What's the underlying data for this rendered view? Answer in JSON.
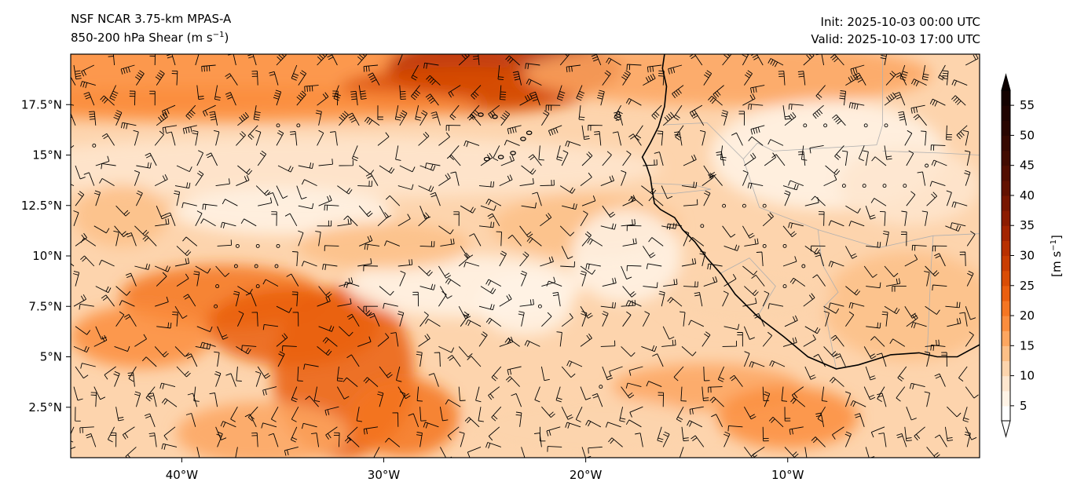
{
  "header": {
    "model": "NSF NCAR 3.75-km MPAS-A",
    "field_label": "850-200 hPa Shear (m s",
    "field_exp": "−1",
    "field_close": ")",
    "init": "Init: 2025-10-03 00:00 UTC",
    "valid": "Valid: 2025-10-03 17:00 UTC"
  },
  "map": {
    "lon_ticks": [
      {
        "lon": -40,
        "label": "40°W"
      },
      {
        "lon": -30,
        "label": "30°W"
      },
      {
        "lon": -20,
        "label": "20°W"
      },
      {
        "lon": -10,
        "label": "10°W"
      }
    ],
    "lat_ticks": [
      {
        "lat": 2.5,
        "label": "2.5°N"
      },
      {
        "lat": 5,
        "label": "5°N"
      },
      {
        "lat": 7.5,
        "label": "7.5°N"
      },
      {
        "lat": 10,
        "label": "10°N"
      },
      {
        "lat": 12.5,
        "label": "12.5°N"
      },
      {
        "lat": 15,
        "label": "15°N"
      },
      {
        "lat": 17.5,
        "label": "17.5°N"
      }
    ],
    "extent": {
      "lon_min": -45.5,
      "lon_max": -0.5,
      "lat_min": 0,
      "lat_max": 20
    },
    "coastline_color": "#000000",
    "border_color": "#b0b0b0"
  },
  "colorbar": {
    "label": "[m s",
    "label_exp": "−1",
    "label_close": "]",
    "ticks": [
      "5",
      "10",
      "15",
      "20",
      "25",
      "30",
      "35",
      "40",
      "45",
      "50",
      "55"
    ],
    "levels": [
      2.5,
      5,
      7.5,
      10,
      12.5,
      15,
      17.5,
      20,
      22.5,
      25,
      27.5,
      30,
      32.5,
      35,
      37.5,
      40,
      42.5,
      45,
      47.5,
      50,
      52.5,
      55,
      57.5
    ],
    "colors": [
      "#ffffff",
      "#fff3e6",
      "#fee6cf",
      "#fdd4ad",
      "#fdbf87",
      "#fda660",
      "#fb8d3d",
      "#f57622",
      "#ea5f0f",
      "#d94d05",
      "#c93d02",
      "#b83000",
      "#a32400",
      "#8c1c00",
      "#781700",
      "#631200",
      "#520e00",
      "#420b00",
      "#360800",
      "#290500",
      "#1f0300",
      "#140200"
    ]
  },
  "labels": {
    "calm_marker": "calm",
    "barb": "shear barb"
  }
}
